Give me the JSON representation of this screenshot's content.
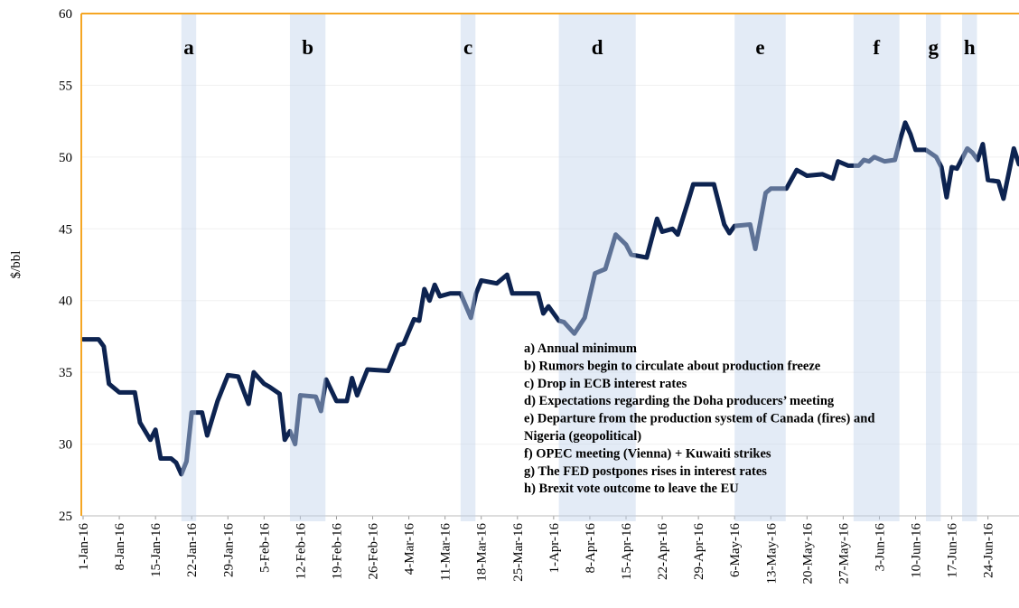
{
  "chart_data": {
    "type": "line",
    "ylabel": "$/bbl",
    "ylim": [
      25,
      60
    ],
    "yticks": [
      25,
      30,
      35,
      40,
      45,
      50,
      55,
      60
    ],
    "xlim": [
      "2016-01-01",
      "2016-06-30"
    ],
    "xticks": [
      {
        "value": "2016-01-01",
        "label": "1-Jan-16"
      },
      {
        "value": "2016-01-08",
        "label": "8-Jan-16"
      },
      {
        "value": "2016-01-15",
        "label": "15-Jan-16"
      },
      {
        "value": "2016-01-22",
        "label": "22-Jan-16"
      },
      {
        "value": "2016-01-29",
        "label": "29-Jan-16"
      },
      {
        "value": "2016-02-05",
        "label": "5-Feb-16"
      },
      {
        "value": "2016-02-12",
        "label": "12-Feb-16"
      },
      {
        "value": "2016-02-19",
        "label": "19-Feb-16"
      },
      {
        "value": "2016-02-26",
        "label": "26-Feb-16"
      },
      {
        "value": "2016-03-04",
        "label": "4-Mar-16"
      },
      {
        "value": "2016-03-11",
        "label": "11-Mar-16"
      },
      {
        "value": "2016-03-18",
        "label": "18-Mar-16"
      },
      {
        "value": "2016-03-25",
        "label": "25-Mar-16"
      },
      {
        "value": "2016-04-01",
        "label": "1-Apr-16"
      },
      {
        "value": "2016-04-08",
        "label": "8-Apr-16"
      },
      {
        "value": "2016-04-15",
        "label": "15-Apr-16"
      },
      {
        "value": "2016-04-22",
        "label": "22-Apr-16"
      },
      {
        "value": "2016-04-29",
        "label": "29-Apr-16"
      },
      {
        "value": "2016-05-06",
        "label": "6-May-16"
      },
      {
        "value": "2016-05-13",
        "label": "13-May-16"
      },
      {
        "value": "2016-05-20",
        "label": "20-May-16"
      },
      {
        "value": "2016-05-27",
        "label": "27-May-16"
      },
      {
        "value": "2016-06-03",
        "label": "3-Jun-16"
      },
      {
        "value": "2016-06-10",
        "label": "10-Jun-16"
      },
      {
        "value": "2016-06-17",
        "label": "17-Jun-16"
      },
      {
        "value": "2016-06-24",
        "label": "24-Jun-16"
      }
    ],
    "grid": true,
    "series": [
      {
        "color": "#0d2350",
        "x": [
          "2016-01-01",
          "2016-01-04",
          "2016-01-05",
          "2016-01-06",
          "2016-01-08",
          "2016-01-11",
          "2016-01-12",
          "2016-01-13",
          "2016-01-14",
          "2016-01-15",
          "2016-01-16",
          "2016-01-18",
          "2016-01-19",
          "2016-01-20",
          "2016-01-21",
          "2016-01-22",
          "2016-01-24",
          "2016-01-25",
          "2016-01-27",
          "2016-01-29",
          "2016-01-31",
          "2016-02-02",
          "2016-02-03",
          "2016-02-05",
          "2016-02-06",
          "2016-02-08",
          "2016-02-09",
          "2016-02-10",
          "2016-02-11",
          "2016-02-12",
          "2016-02-15",
          "2016-02-16",
          "2016-02-17",
          "2016-02-19",
          "2016-02-21",
          "2016-02-22",
          "2016-02-23",
          "2016-02-25",
          "2016-02-29",
          "2016-03-02",
          "2016-03-03",
          "2016-03-05",
          "2016-03-06",
          "2016-03-07",
          "2016-03-08",
          "2016-03-09",
          "2016-03-10",
          "2016-03-12",
          "2016-03-14",
          "2016-03-16",
          "2016-03-17",
          "2016-03-18",
          "2016-03-21",
          "2016-03-23",
          "2016-03-24",
          "2016-03-29",
          "2016-03-30",
          "2016-03-31",
          "2016-04-02",
          "2016-04-03",
          "2016-04-05",
          "2016-04-07",
          "2016-04-09",
          "2016-04-11",
          "2016-04-13",
          "2016-04-15",
          "2016-04-16",
          "2016-04-19",
          "2016-04-21",
          "2016-04-22",
          "2016-04-24",
          "2016-04-25",
          "2016-04-27",
          "2016-04-28",
          "2016-05-02",
          "2016-05-04",
          "2016-05-05",
          "2016-05-06",
          "2016-05-09",
          "2016-05-10",
          "2016-05-12",
          "2016-05-13",
          "2016-05-16",
          "2016-05-18",
          "2016-05-20",
          "2016-05-23",
          "2016-05-25",
          "2016-05-26",
          "2016-05-28",
          "2016-05-30",
          "2016-05-31",
          "2016-06-01",
          "2016-06-02",
          "2016-06-04",
          "2016-06-06",
          "2016-06-07",
          "2016-06-08",
          "2016-06-09",
          "2016-06-10",
          "2016-06-12",
          "2016-06-14",
          "2016-06-15",
          "2016-06-16",
          "2016-06-17",
          "2016-06-18",
          "2016-06-20",
          "2016-06-21",
          "2016-06-22",
          "2016-06-23",
          "2016-06-24",
          "2016-06-26",
          "2016-06-27",
          "2016-06-29",
          "2016-06-30"
        ],
        "values": [
          37.3,
          37.3,
          36.8,
          34.2,
          33.6,
          33.6,
          31.5,
          30.9,
          30.3,
          31.0,
          29.0,
          29.0,
          28.7,
          27.9,
          28.8,
          32.2,
          32.2,
          30.6,
          33.0,
          34.8,
          34.7,
          32.8,
          35.0,
          34.2,
          34.0,
          33.5,
          30.3,
          30.9,
          30.0,
          33.4,
          33.3,
          32.3,
          34.5,
          33.0,
          33.0,
          34.6,
          33.4,
          35.2,
          35.1,
          36.9,
          37.0,
          38.7,
          38.6,
          40.8,
          40.0,
          41.1,
          40.3,
          40.5,
          40.5,
          38.8,
          40.5,
          41.4,
          41.2,
          41.8,
          40.5,
          40.5,
          39.1,
          39.6,
          38.6,
          38.5,
          37.7,
          38.8,
          41.9,
          42.2,
          44.6,
          43.9,
          43.2,
          43.0,
          45.7,
          44.8,
          45.0,
          44.6,
          46.9,
          48.1,
          48.1,
          45.3,
          44.7,
          45.2,
          45.3,
          43.6,
          47.5,
          47.8,
          47.8,
          49.1,
          48.7,
          48.8,
          48.5,
          49.7,
          49.4,
          49.4,
          49.8,
          49.7,
          50.0,
          49.7,
          49.8,
          51.2,
          52.4,
          51.6,
          50.5,
          50.5,
          50.0,
          49.3,
          47.2,
          49.3,
          49.2,
          50.6,
          50.3,
          49.8,
          50.9,
          48.4,
          48.3,
          47.1,
          50.6,
          49.5
        ]
      }
    ],
    "bands": [
      {
        "label": "a",
        "start": "2016-01-20",
        "end": "2016-01-22"
      },
      {
        "label": "b",
        "start": "2016-02-10",
        "end": "2016-02-16"
      },
      {
        "label": "c",
        "start": "2016-03-14",
        "end": "2016-03-16"
      },
      {
        "label": "d",
        "start": "2016-04-02",
        "end": "2016-04-16"
      },
      {
        "label": "e",
        "start": "2016-05-06",
        "end": "2016-05-15"
      },
      {
        "label": "f",
        "start": "2016-05-29",
        "end": "2016-06-06"
      },
      {
        "label": "g",
        "start": "2016-06-12",
        "end": "2016-06-14"
      },
      {
        "label": "h",
        "start": "2016-06-19",
        "end": "2016-06-21"
      }
    ],
    "notes": [
      "a) Annual minimum",
      "b) Rumors begin to circulate about production freeze",
      "c) Drop in ECB interest rates",
      "d) Expectations regarding the Doha producers’ meeting",
      "e) Departure from the production system of Canada (fires) and",
      "Nigeria (geopolitical)",
      "f) OPEC meeting (Vienna) + Kuwaiti strikes",
      "g) The FED postpones rises in interest rates",
      "h) Brexit vote outcome to leave the EU"
    ]
  }
}
